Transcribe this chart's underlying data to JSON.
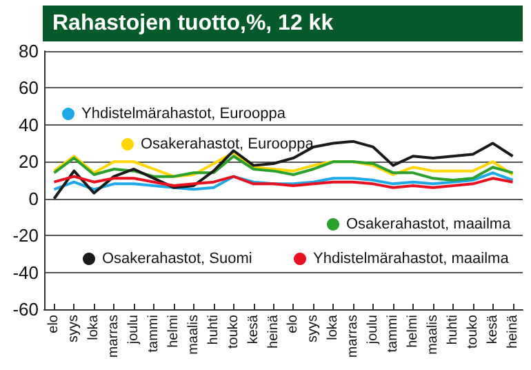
{
  "chart_data": {
    "type": "line",
    "title": "Rahastojen tuotto,%, 12 kk",
    "categories": [
      "elo",
      "syys",
      "loka",
      "marras",
      "joulu",
      "tammi",
      "helmi",
      "maalis",
      "huhti",
      "touko",
      "kesä",
      "heinä",
      "elo",
      "syys",
      "loka",
      "marras",
      "joulu",
      "tammi",
      "helmi",
      "maalis",
      "huhti",
      "touko",
      "kesä",
      "heinä"
    ],
    "series": [
      {
        "name": "Yhdistelmärahastot, Eurooppa",
        "color": "#1ea8e8",
        "values": [
          5,
          9,
          5,
          8,
          8,
          7,
          6,
          5,
          6,
          12,
          9,
          8,
          8,
          9,
          11,
          11,
          10,
          8,
          9,
          8,
          9,
          10,
          14,
          10
        ]
      },
      {
        "name": "Osakerahastot, Eurooppa",
        "color": "#ffd600",
        "values": [
          15,
          23,
          14,
          20,
          20,
          16,
          12,
          13,
          19,
          25,
          17,
          16,
          15,
          18,
          20,
          20,
          18,
          13,
          17,
          15,
          15,
          15,
          20,
          13
        ]
      },
      {
        "name": "Osakerahastot, maailma",
        "color": "#2ca02c",
        "values": [
          14,
          22,
          13,
          16,
          15,
          12,
          12,
          14,
          14,
          23,
          16,
          15,
          13,
          16,
          20,
          20,
          19,
          14,
          14,
          11,
          10,
          11,
          17,
          14
        ]
      },
      {
        "name": "Osakerahastot, Suomi",
        "color": "#1a1a1a",
        "values": [
          0,
          15,
          3,
          12,
          16,
          11,
          6,
          7,
          15,
          26,
          18,
          19,
          22,
          28,
          30,
          31,
          28,
          18,
          23,
          22,
          23,
          24,
          30,
          23
        ]
      },
      {
        "name": "Yhdistelmärahastot, maailma",
        "color": "#e8101e",
        "values": [
          9,
          12,
          9,
          11,
          11,
          9,
          7,
          8,
          9,
          12,
          8,
          8,
          7,
          8,
          9,
          9,
          8,
          6,
          7,
          6,
          7,
          8,
          11,
          9
        ]
      }
    ],
    "ylim": [
      -60,
      80
    ],
    "yticks": [
      -60,
      -40,
      -20,
      0,
      20,
      40,
      60,
      80
    ],
    "grid": "y",
    "legend": "bottom right",
    "marker": "none",
    "line_style": "solid"
  }
}
